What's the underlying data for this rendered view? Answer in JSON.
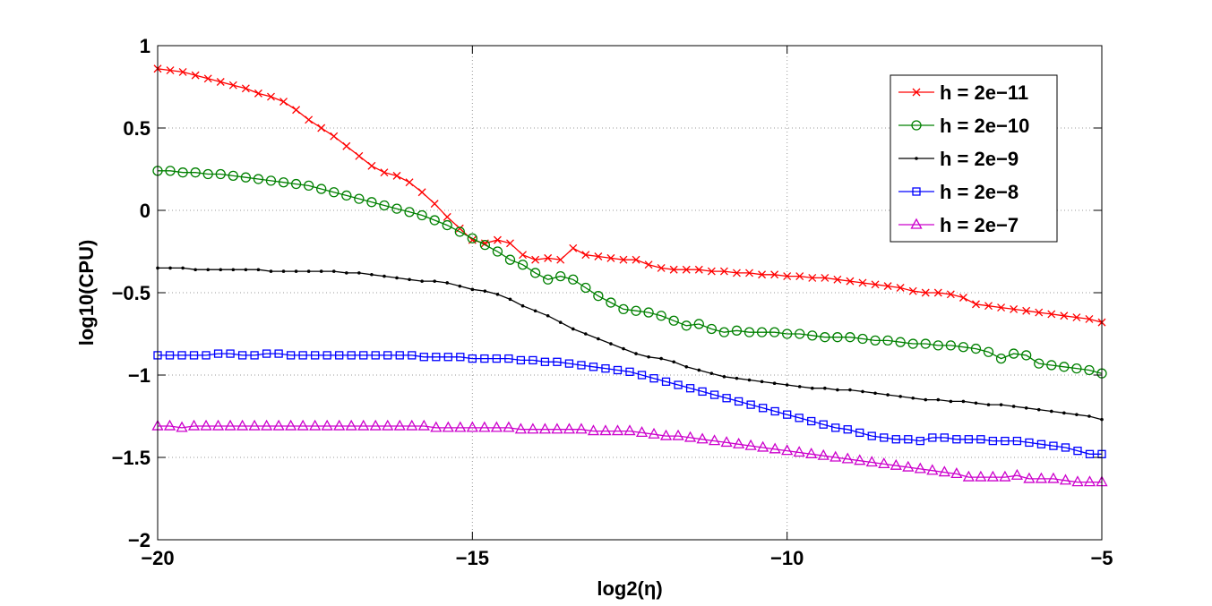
{
  "chart_data": {
    "type": "line",
    "title": "",
    "xlabel": "log2(η)",
    "ylabel": "log10(CPU)",
    "xlim": [
      -20,
      -5
    ],
    "ylim": [
      -2,
      1
    ],
    "xticks": [
      -20,
      -15,
      -10,
      -5
    ],
    "xtick_labels": [
      "−20",
      "−15",
      "−10",
      "−5"
    ],
    "yticks": [
      1,
      0.5,
      0,
      -0.5,
      -1,
      -1.5,
      -2
    ],
    "ytick_labels": [
      "1",
      "0.5",
      "0",
      "−0.5",
      "−1",
      "−1.5",
      "−2"
    ],
    "grid": true,
    "legend_position": "top-right",
    "x_start": -20,
    "x_step": 0.2,
    "series": [
      {
        "name": "h = 2e−11",
        "color": "#ff0000",
        "marker": "x",
        "values": [
          0.86,
          0.85,
          0.84,
          0.82,
          0.8,
          0.78,
          0.76,
          0.74,
          0.71,
          0.69,
          0.66,
          0.61,
          0.55,
          0.5,
          0.45,
          0.39,
          0.33,
          0.27,
          0.23,
          0.21,
          0.17,
          0.11,
          0.04,
          -0.04,
          -0.11,
          -0.18,
          -0.2,
          -0.18,
          -0.2,
          -0.27,
          -0.3,
          -0.29,
          -0.3,
          -0.23,
          -0.27,
          -0.28,
          -0.29,
          -0.3,
          -0.3,
          -0.33,
          -0.35,
          -0.36,
          -0.36,
          -0.36,
          -0.37,
          -0.37,
          -0.38,
          -0.38,
          -0.39,
          -0.39,
          -0.4,
          -0.4,
          -0.41,
          -0.41,
          -0.42,
          -0.43,
          -0.44,
          -0.45,
          -0.46,
          -0.47,
          -0.49,
          -0.5,
          -0.5,
          -0.51,
          -0.53,
          -0.57,
          -0.58,
          -0.59,
          -0.6,
          -0.61,
          -0.62,
          -0.63,
          -0.64,
          -0.65,
          -0.66,
          -0.68
        ]
      },
      {
        "name": "h = 2e−10",
        "color": "#008000",
        "marker": "circle",
        "values": [
          0.24,
          0.24,
          0.23,
          0.23,
          0.22,
          0.22,
          0.21,
          0.2,
          0.19,
          0.18,
          0.17,
          0.16,
          0.15,
          0.13,
          0.11,
          0.09,
          0.07,
          0.05,
          0.03,
          0.01,
          -0.01,
          -0.03,
          -0.06,
          -0.09,
          -0.13,
          -0.17,
          -0.21,
          -0.25,
          -0.3,
          -0.33,
          -0.38,
          -0.42,
          -0.4,
          -0.42,
          -0.47,
          -0.52,
          -0.56,
          -0.6,
          -0.61,
          -0.62,
          -0.64,
          -0.67,
          -0.7,
          -0.69,
          -0.72,
          -0.74,
          -0.73,
          -0.74,
          -0.74,
          -0.74,
          -0.75,
          -0.75,
          -0.76,
          -0.77,
          -0.77,
          -0.77,
          -0.78,
          -0.79,
          -0.79,
          -0.8,
          -0.81,
          -0.81,
          -0.82,
          -0.82,
          -0.83,
          -0.84,
          -0.86,
          -0.9,
          -0.87,
          -0.88,
          -0.93,
          -0.94,
          -0.95,
          -0.96,
          -0.97,
          -0.99
        ]
      },
      {
        "name": "h = 2e−9",
        "color": "#000000",
        "marker": "dot",
        "values": [
          -0.35,
          -0.35,
          -0.35,
          -0.36,
          -0.36,
          -0.36,
          -0.36,
          -0.36,
          -0.36,
          -0.37,
          -0.37,
          -0.37,
          -0.37,
          -0.37,
          -0.37,
          -0.38,
          -0.38,
          -0.39,
          -0.4,
          -0.41,
          -0.42,
          -0.43,
          -0.43,
          -0.44,
          -0.46,
          -0.48,
          -0.49,
          -0.51,
          -0.54,
          -0.58,
          -0.61,
          -0.64,
          -0.68,
          -0.72,
          -0.75,
          -0.78,
          -0.81,
          -0.84,
          -0.87,
          -0.89,
          -0.9,
          -0.92,
          -0.95,
          -0.97,
          -0.99,
          -1.01,
          -1.02,
          -1.03,
          -1.04,
          -1.05,
          -1.06,
          -1.07,
          -1.08,
          -1.08,
          -1.09,
          -1.09,
          -1.1,
          -1.11,
          -1.12,
          -1.13,
          -1.14,
          -1.15,
          -1.15,
          -1.16,
          -1.16,
          -1.17,
          -1.18,
          -1.18,
          -1.19,
          -1.2,
          -1.21,
          -1.22,
          -1.23,
          -1.24,
          -1.25,
          -1.27
        ]
      },
      {
        "name": "h = 2e−8",
        "color": "#0000ff",
        "marker": "square",
        "values": [
          -0.88,
          -0.88,
          -0.88,
          -0.88,
          -0.88,
          -0.87,
          -0.87,
          -0.88,
          -0.88,
          -0.87,
          -0.87,
          -0.88,
          -0.88,
          -0.88,
          -0.88,
          -0.88,
          -0.88,
          -0.88,
          -0.88,
          -0.88,
          -0.88,
          -0.88,
          -0.89,
          -0.89,
          -0.89,
          -0.89,
          -0.9,
          -0.9,
          -0.9,
          -0.9,
          -0.91,
          -0.91,
          -0.92,
          -0.92,
          -0.93,
          -0.94,
          -0.95,
          -0.96,
          -0.97,
          -0.98,
          -1.0,
          -1.02,
          -1.04,
          -1.06,
          -1.08,
          -1.1,
          -1.12,
          -1.14,
          -1.16,
          -1.18,
          -1.2,
          -1.22,
          -1.24,
          -1.26,
          -1.28,
          -1.3,
          -1.32,
          -1.33,
          -1.35,
          -1.37,
          -1.38,
          -1.39,
          -1.39,
          -1.4,
          -1.38,
          -1.38,
          -1.39,
          -1.39,
          -1.39,
          -1.4,
          -1.4,
          -1.4,
          -1.41,
          -1.42,
          -1.43,
          -1.44,
          -1.46,
          -1.48,
          -1.48
        ]
      },
      {
        "name": "h = 2e−7",
        "color": "#cc00cc",
        "marker": "triangle",
        "values": [
          -1.31,
          -1.31,
          -1.32,
          -1.31,
          -1.31,
          -1.31,
          -1.31,
          -1.31,
          -1.31,
          -1.31,
          -1.31,
          -1.31,
          -1.31,
          -1.31,
          -1.31,
          -1.31,
          -1.31,
          -1.31,
          -1.31,
          -1.31,
          -1.31,
          -1.31,
          -1.31,
          -1.32,
          -1.32,
          -1.32,
          -1.32,
          -1.32,
          -1.32,
          -1.32,
          -1.33,
          -1.33,
          -1.33,
          -1.33,
          -1.33,
          -1.33,
          -1.34,
          -1.34,
          -1.34,
          -1.34,
          -1.35,
          -1.36,
          -1.37,
          -1.37,
          -1.38,
          -1.39,
          -1.4,
          -1.41,
          -1.42,
          -1.43,
          -1.44,
          -1.45,
          -1.46,
          -1.47,
          -1.48,
          -1.49,
          -1.5,
          -1.51,
          -1.52,
          -1.53,
          -1.54,
          -1.55,
          -1.56,
          -1.57,
          -1.58,
          -1.59,
          -1.6,
          -1.62,
          -1.62,
          -1.62,
          -1.62,
          -1.61,
          -1.63,
          -1.63,
          -1.63,
          -1.64,
          -1.65,
          -1.65,
          -1.65
        ]
      }
    ]
  }
}
